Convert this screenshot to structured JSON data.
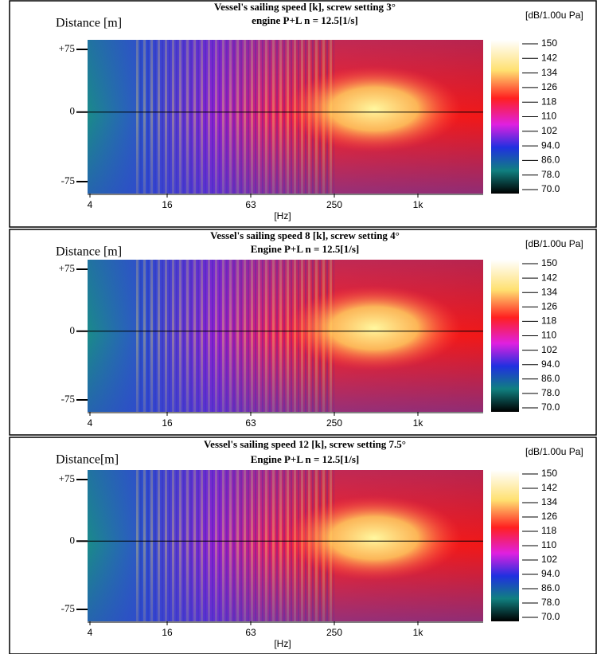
{
  "panels": [
    {
      "y_label": "Distance [m]",
      "title_lines": [
        "Vessel's sailing speed [k], screw setting 3°",
        "engine P+L  n = 12.5[1/s]"
      ],
      "unit": "[dB/1.00u Pa]",
      "y_ticks": [
        "+75",
        "0",
        "-75"
      ],
      "x_ticks": [
        "4",
        "16",
        "63",
        "250",
        "1k"
      ],
      "x_label": "[Hz]",
      "colorbar_labels": [
        "150",
        "142",
        "134",
        "126",
        "118",
        "110",
        "102",
        "94.0",
        "86.0",
        "78.0",
        "70.0"
      ]
    },
    {
      "y_label": "Distance [m]",
      "title_lines": [
        "Vessel's sailing speed 8  [k], screw setting 4°",
        "Engine P+L  n = 12.5[1/s]"
      ],
      "unit": "[dB/1.00u Pa]",
      "y_ticks": [
        "+75",
        "0",
        "-75"
      ],
      "x_ticks": [
        "4",
        "16",
        "63",
        "250",
        "1k"
      ],
      "colorbar_labels": [
        "150",
        "142",
        "134",
        "126",
        "118",
        "110",
        "102",
        "94.0",
        "86.0",
        "78.0",
        "70.0"
      ]
    },
    {
      "y_label": "Distance[m]",
      "title_lines": [
        "Vessel's sailing speed 12 [k], screw setting 7.5°",
        "Engine P+L  n = 12.5[1/s]"
      ],
      "unit": "[dB/1.00u Pa]",
      "y_ticks": [
        "+75",
        "0",
        "-75"
      ],
      "x_ticks": [
        "4",
        "16",
        "63",
        "250",
        "1k"
      ],
      "x_label": "[Hz]",
      "colorbar_labels": [
        "150",
        "142",
        "134",
        "126",
        "118",
        "110",
        "102",
        "94.0",
        "86.0",
        "78.0",
        "70.0"
      ]
    }
  ]
}
